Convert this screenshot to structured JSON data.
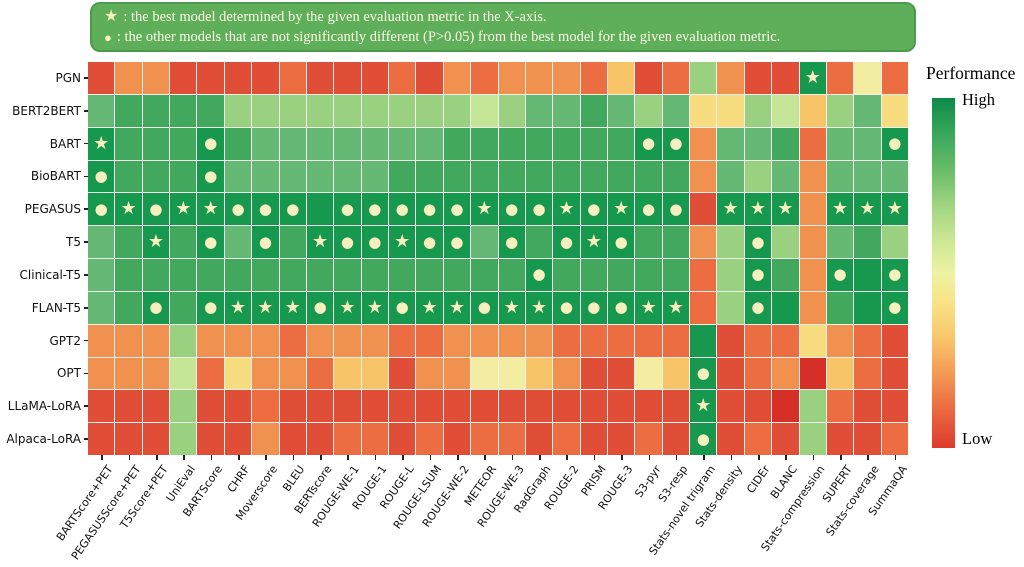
{
  "legend": {
    "star_symbol": "★",
    "circle_symbol": "●",
    "star_text": ": the best model determined by the given evaluation metric in the X-axis.",
    "circle_text": ": the other models that are not significantly different (P>0.05) from the best model for the given evaluation metric."
  },
  "colorbar": {
    "title": "Performance",
    "high_label": "High",
    "low_label": "Low",
    "high_color": "#0c8a4b",
    "mid_color": "#eef3a2",
    "low_color": "#dc3b2c"
  },
  "chart_data": {
    "type": "heatmap",
    "title": "",
    "x_labels": [
      "BARTScore+PET",
      "PEGASUSScore+PET",
      "T5Score+PET",
      "UniEval",
      "BARTScore",
      "CHRF",
      "Moverscore",
      "BLEU",
      "BERTscore",
      "ROUGE-WE-1",
      "ROUGE-1",
      "ROUGE-L",
      "ROUGE-LSUM",
      "ROUGE-WE-2",
      "METEOR",
      "ROUGE-WE-3",
      "RadGraph",
      "ROUGE-2",
      "PRISM",
      "ROUGE-3",
      "S3-pyr",
      "S3-resp",
      "Stats-novel trigram",
      "Stats-density",
      "CIDEr",
      "BLANC",
      "Stats-compression",
      "SUPERT",
      "Stats-coverage",
      "SummaQA"
    ],
    "y_labels": [
      "PGN",
      "BERT2BERT",
      "BART",
      "BioBART",
      "PEGASUS",
      "T5",
      "Clinical-T5",
      "FLAN-T5",
      "GPT2",
      "OPT",
      "LLaMA-LoRA",
      "Alpaca-LoRA"
    ],
    "value_scale": "qualitative color level per cell, green=high performance, red=low performance",
    "palette": {
      "dg": "#17984f",
      "g": "#41a85e",
      "mg": "#66b974",
      "lg": "#9ad181",
      "plg": "#c6e697",
      "py": "#f3eda1",
      "y": "#f7dc80",
      "yo": "#f8c468",
      "o": "#f0914f",
      "do": "#ec6d42",
      "r": "#e14e38",
      "dr": "#d52f27"
    },
    "marker_symbols": {
      "s": "★",
      "c": "●"
    },
    "marker_meaning": {
      "s": "best model for this metric",
      "c": "not significantly different (P>0.05) from best"
    },
    "marker_color": "#f5f0bd",
    "cells": [
      [
        "r",
        "o",
        "o",
        "r",
        "r",
        "r",
        "r",
        "do",
        "r",
        "r",
        "r",
        "do",
        "r",
        "o",
        "do",
        "o",
        "o",
        "o",
        "do",
        "yo",
        "r",
        "do",
        "lg",
        "o",
        "r",
        "r",
        "dg",
        "do",
        "py",
        "do"
      ],
      [
        "mg",
        "g",
        "g",
        "g",
        "g",
        "lg",
        "lg",
        "lg",
        "lg",
        "lg",
        "lg",
        "lg",
        "lg",
        "lg",
        "plg",
        "lg",
        "mg",
        "mg",
        "g",
        "mg",
        "lg",
        "mg",
        "y",
        "y",
        "lg",
        "plg",
        "yo",
        "lg",
        "mg",
        "y"
      ],
      [
        "dg",
        "g",
        "g",
        "g",
        "dg",
        "g",
        "mg",
        "mg",
        "mg",
        "mg",
        "mg",
        "mg",
        "mg",
        "g",
        "g",
        "g",
        "g",
        "g",
        "g",
        "g",
        "dg",
        "dg",
        "o",
        "mg",
        "mg",
        "g",
        "do",
        "mg",
        "mg",
        "dg"
      ],
      [
        "dg",
        "g",
        "g",
        "g",
        "dg",
        "mg",
        "mg",
        "mg",
        "mg",
        "mg",
        "mg",
        "g",
        "g",
        "g",
        "g",
        "g",
        "g",
        "g",
        "g",
        "g",
        "g",
        "g",
        "o",
        "mg",
        "lg",
        "mg",
        "o",
        "mg",
        "mg",
        "mg"
      ],
      [
        "dg",
        "dg",
        "dg",
        "dg",
        "dg",
        "dg",
        "dg",
        "dg",
        "dg",
        "dg",
        "dg",
        "dg",
        "dg",
        "dg",
        "dg",
        "dg",
        "dg",
        "dg",
        "dg",
        "dg",
        "dg",
        "dg",
        "r",
        "dg",
        "dg",
        "dg",
        "o",
        "dg",
        "dg",
        "dg"
      ],
      [
        "mg",
        "g",
        "dg",
        "g",
        "dg",
        "mg",
        "dg",
        "g",
        "dg",
        "dg",
        "dg",
        "dg",
        "dg",
        "dg",
        "mg",
        "dg",
        "g",
        "dg",
        "dg",
        "dg",
        "g",
        "g",
        "o",
        "lg",
        "dg",
        "lg",
        "o",
        "mg",
        "g",
        "lg"
      ],
      [
        "mg",
        "g",
        "g",
        "g",
        "g",
        "g",
        "g",
        "g",
        "g",
        "g",
        "g",
        "g",
        "g",
        "g",
        "g",
        "g",
        "dg",
        "g",
        "g",
        "g",
        "g",
        "g",
        "do",
        "lg",
        "dg",
        "g",
        "o",
        "dg",
        "dg",
        "dg"
      ],
      [
        "mg",
        "g",
        "dg",
        "g",
        "dg",
        "dg",
        "dg",
        "dg",
        "dg",
        "dg",
        "dg",
        "dg",
        "dg",
        "dg",
        "dg",
        "dg",
        "dg",
        "dg",
        "dg",
        "dg",
        "dg",
        "dg",
        "do",
        "lg",
        "dg",
        "dg",
        "o",
        "g",
        "dg",
        "dg"
      ],
      [
        "o",
        "o",
        "o",
        "lg",
        "o",
        "o",
        "o",
        "do",
        "o",
        "o",
        "o",
        "do",
        "do",
        "o",
        "o",
        "o",
        "o",
        "do",
        "do",
        "do",
        "do",
        "do",
        "dg",
        "r",
        "do",
        "do",
        "y",
        "o",
        "do",
        "r"
      ],
      [
        "o",
        "o",
        "o",
        "plg",
        "do",
        "y",
        "o",
        "o",
        "do",
        "yo",
        "yo",
        "r",
        "o",
        "o",
        "py",
        "py",
        "yo",
        "o",
        "r",
        "r",
        "py",
        "yo",
        "dg",
        "r",
        "do",
        "o",
        "dr",
        "yo",
        "do",
        "r"
      ],
      [
        "r",
        "r",
        "r",
        "lg",
        "r",
        "r",
        "do",
        "r",
        "r",
        "r",
        "r",
        "r",
        "r",
        "r",
        "r",
        "r",
        "r",
        "r",
        "r",
        "r",
        "r",
        "r",
        "dg",
        "r",
        "r",
        "dr",
        "lg",
        "do",
        "r",
        "r"
      ],
      [
        "r",
        "r",
        "r",
        "lg",
        "r",
        "r",
        "o",
        "r",
        "r",
        "do",
        "do",
        "r",
        "do",
        "r",
        "do",
        "do",
        "r",
        "do",
        "r",
        "r",
        "do",
        "r",
        "dg",
        "r",
        "do",
        "r",
        "lg",
        "r",
        "r",
        "do"
      ]
    ],
    "markers": [
      [
        "",
        "",
        "",
        "",
        "",
        "",
        "",
        "",
        "",
        "",
        "",
        "",
        "",
        "",
        "",
        "",
        "",
        "",
        "",
        "",
        "",
        "",
        "",
        "",
        "",
        "",
        "s",
        "",
        "",
        ""
      ],
      [
        "",
        "",
        "",
        "",
        "",
        "",
        "",
        "",
        "",
        "",
        "",
        "",
        "",
        "",
        "",
        "",
        "",
        "",
        "",
        "",
        "",
        "",
        "",
        "",
        "",
        "",
        "",
        "",
        "",
        ""
      ],
      [
        "s",
        "",
        "",
        "",
        "c",
        "",
        "",
        "",
        "",
        "",
        "",
        "",
        "",
        "",
        "",
        "",
        "",
        "",
        "",
        "",
        "c",
        "c",
        "",
        "",
        "",
        "",
        "",
        "",
        "",
        "c"
      ],
      [
        "c",
        "",
        "",
        "",
        "c",
        "",
        "",
        "",
        "",
        "",
        "",
        "",
        "",
        "",
        "",
        "",
        "",
        "",
        "",
        "",
        "",
        "",
        "",
        "",
        "",
        "",
        "",
        "",
        "",
        ""
      ],
      [
        "c",
        "s",
        "c",
        "s",
        "s",
        "c",
        "c",
        "c",
        "",
        "c",
        "c",
        "c",
        "c",
        "c",
        "s",
        "c",
        "c",
        "s",
        "c",
        "s",
        "c",
        "c",
        "",
        "s",
        "s",
        "s",
        "",
        "s",
        "s",
        "s"
      ],
      [
        "",
        "",
        "s",
        "",
        "c",
        "",
        "c",
        "",
        "s",
        "c",
        "c",
        "s",
        "c",
        "c",
        "",
        "c",
        "",
        "c",
        "s",
        "c",
        "",
        "",
        "",
        "",
        "c",
        "",
        "",
        "",
        "",
        ""
      ],
      [
        "",
        "",
        "",
        "",
        "",
        "",
        "",
        "",
        "",
        "",
        "",
        "",
        "",
        "",
        "",
        "",
        "c",
        "",
        "",
        "",
        "",
        "",
        "",
        "",
        "c",
        "",
        "",
        "c",
        "",
        "c"
      ],
      [
        "",
        "",
        "c",
        "",
        "c",
        "s",
        "s",
        "s",
        "c",
        "s",
        "s",
        "c",
        "s",
        "s",
        "c",
        "s",
        "s",
        "c",
        "c",
        "c",
        "s",
        "s",
        "",
        "",
        "c",
        "",
        "",
        "",
        "",
        "c"
      ],
      [
        "",
        "",
        "",
        "",
        "",
        "",
        "",
        "",
        "",
        "",
        "",
        "",
        "",
        "",
        "",
        "",
        "",
        "",
        "",
        "",
        "",
        "",
        "",
        "",
        "",
        "",
        "",
        "",
        "",
        ""
      ],
      [
        "",
        "",
        "",
        "",
        "",
        "",
        "",
        "",
        "",
        "",
        "",
        "",
        "",
        "",
        "",
        "",
        "",
        "",
        "",
        "",
        "",
        "",
        "c",
        "",
        "",
        "",
        "",
        "",
        "",
        ""
      ],
      [
        "",
        "",
        "",
        "",
        "",
        "",
        "",
        "",
        "",
        "",
        "",
        "",
        "",
        "",
        "",
        "",
        "",
        "",
        "",
        "",
        "",
        "",
        "s",
        "",
        "",
        "",
        "",
        "",
        "",
        ""
      ],
      [
        "",
        "",
        "",
        "",
        "",
        "",
        "",
        "",
        "",
        "",
        "",
        "",
        "",
        "",
        "",
        "",
        "",
        "",
        "",
        "",
        "",
        "",
        "c",
        "",
        "",
        "",
        "",
        "",
        "",
        ""
      ]
    ],
    "layout": {
      "grid_lines": "thin light lines between cells",
      "x_tick_rotation_deg": -55,
      "colorbar_position": "right"
    }
  }
}
